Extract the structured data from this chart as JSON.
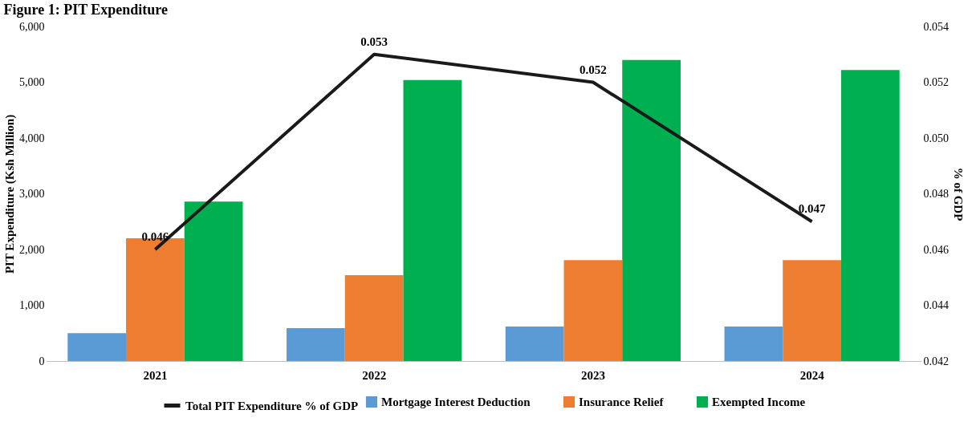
{
  "chart_data": {
    "type": "bar",
    "title": "Figure 1: PIT Expenditure",
    "categories": [
      "2021",
      "2022",
      "2023",
      "2024"
    ],
    "ylabel": "PIT Expenditure (Ksh Million)",
    "y2label": "% of GDP",
    "ylim": [
      0,
      6000
    ],
    "yticks": [
      {
        "value": 0,
        "label": "0"
      },
      {
        "value": 1000,
        "label": "1,000"
      },
      {
        "value": 2000,
        "label": "2,000"
      },
      {
        "value": 3000,
        "label": "3,000"
      },
      {
        "value": 4000,
        "label": "4,000"
      },
      {
        "value": 5000,
        "label": "5,000"
      },
      {
        "value": 6000,
        "label": "6,000"
      }
    ],
    "y2lim": [
      0.042,
      0.054
    ],
    "y2ticks": [
      0.042,
      0.044,
      0.046,
      0.048,
      {
        "value": 0.05,
        "label": "0.050"
      },
      0.052,
      0.054
    ],
    "grid": false,
    "legend": "bottom",
    "series": [
      {
        "name": "Mortgage Interest Deduction",
        "color": "#5b9bd5",
        "values": [
          500,
          590,
          620,
          620
        ]
      },
      {
        "name": "Insurance Relief",
        "color": "#ed7d31",
        "values": [
          2200,
          1540,
          1810,
          1810
        ]
      },
      {
        "name": "Exempted Income",
        "color": "#00b050",
        "values": [
          2860,
          5040,
          5400,
          5220
        ]
      },
      {
        "name": "Total PIT Expenditure % of GDP",
        "type": "line",
        "axis": "y2",
        "color": "#1a1a1a",
        "values": [
          0.046,
          0.053,
          0.052,
          0.047
        ],
        "data_labels": true
      }
    ]
  }
}
